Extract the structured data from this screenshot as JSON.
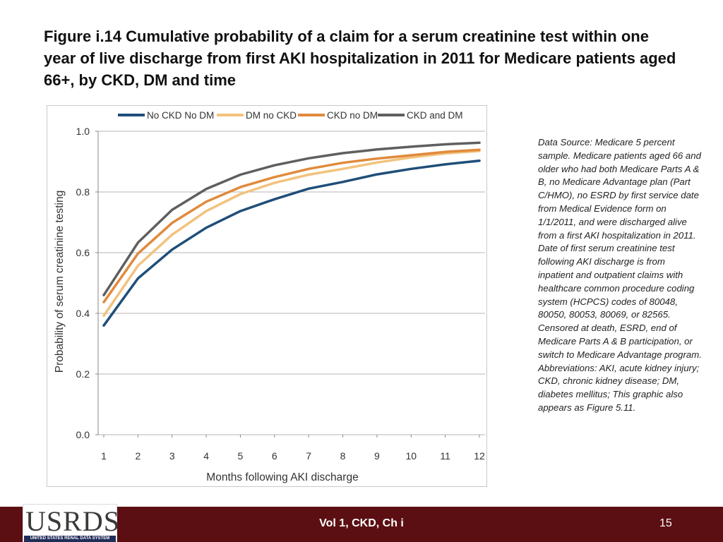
{
  "title": "Figure i.14  Cumulative probability of a claim for a serum creatinine test within one year of live discharge from first AKI hospitalization in 2011 for Medicare patients aged 66+, by CKD, DM and time",
  "note": "Data Source: Medicare 5 percent sample. Medicare patients aged 66 and older who had both Medicare Parts A & B, no Medicare Advantage plan (Part C/HMO), no ESRD by first service date from Medical Evidence form on 1/1/2011, and were discharged alive from a first AKI hospitalization in 2011. Date of first serum creatinine test following AKI discharge is from inpatient and outpatient claims with healthcare common procedure coding system (HCPCS) codes of 80048, 80050, 80053, 80069, or 82565. Censored at death, ESRD, end of Medicare Parts A & B participation, or switch to Medicare Advantage program. Abbreviations: AKI, acute kidney injury; CKD, chronic kidney disease; DM, diabetes mellitus; This graphic also appears as Figure 5.11.",
  "footer": {
    "logo_text": "USRDS",
    "logo_subtext": "UNITED STATES RENAL DATA SYSTEM",
    "center_text": "Vol 1, CKD, Ch i",
    "page_number": "15"
  },
  "chart_data": {
    "type": "line",
    "title": "",
    "xlabel": "Months following AKI discharge",
    "ylabel": "Probability of serum creatinine testing",
    "x": [
      1,
      2,
      3,
      4,
      5,
      6,
      7,
      8,
      9,
      10,
      11,
      12
    ],
    "ylim": [
      0.0,
      1.0
    ],
    "yticks": [
      "0.0",
      "0.2",
      "0.4",
      "0.6",
      "0.8",
      "1.0"
    ],
    "grid": "horizontal",
    "legend_position": "top",
    "series": [
      {
        "name": "No CKD No DM",
        "color": "#1f4e79",
        "values": [
          0.36,
          0.515,
          0.61,
          0.682,
          0.737,
          0.776,
          0.811,
          0.833,
          0.858,
          0.876,
          0.891,
          0.903
        ]
      },
      {
        "name": "DM no CKD",
        "color": "#f2c27d",
        "values": [
          0.392,
          0.557,
          0.659,
          0.737,
          0.793,
          0.83,
          0.857,
          0.876,
          0.897,
          0.914,
          0.927,
          0.935
        ]
      },
      {
        "name": "CKD no DM",
        "color": "#e08a3c",
        "values": [
          0.437,
          0.597,
          0.698,
          0.768,
          0.816,
          0.849,
          0.876,
          0.896,
          0.91,
          0.921,
          0.932,
          0.939
        ]
      },
      {
        "name": "CKD and DM",
        "color": "#5f5f5f",
        "values": [
          0.46,
          0.633,
          0.741,
          0.81,
          0.857,
          0.888,
          0.911,
          0.928,
          0.94,
          0.949,
          0.957,
          0.962
        ]
      }
    ]
  }
}
